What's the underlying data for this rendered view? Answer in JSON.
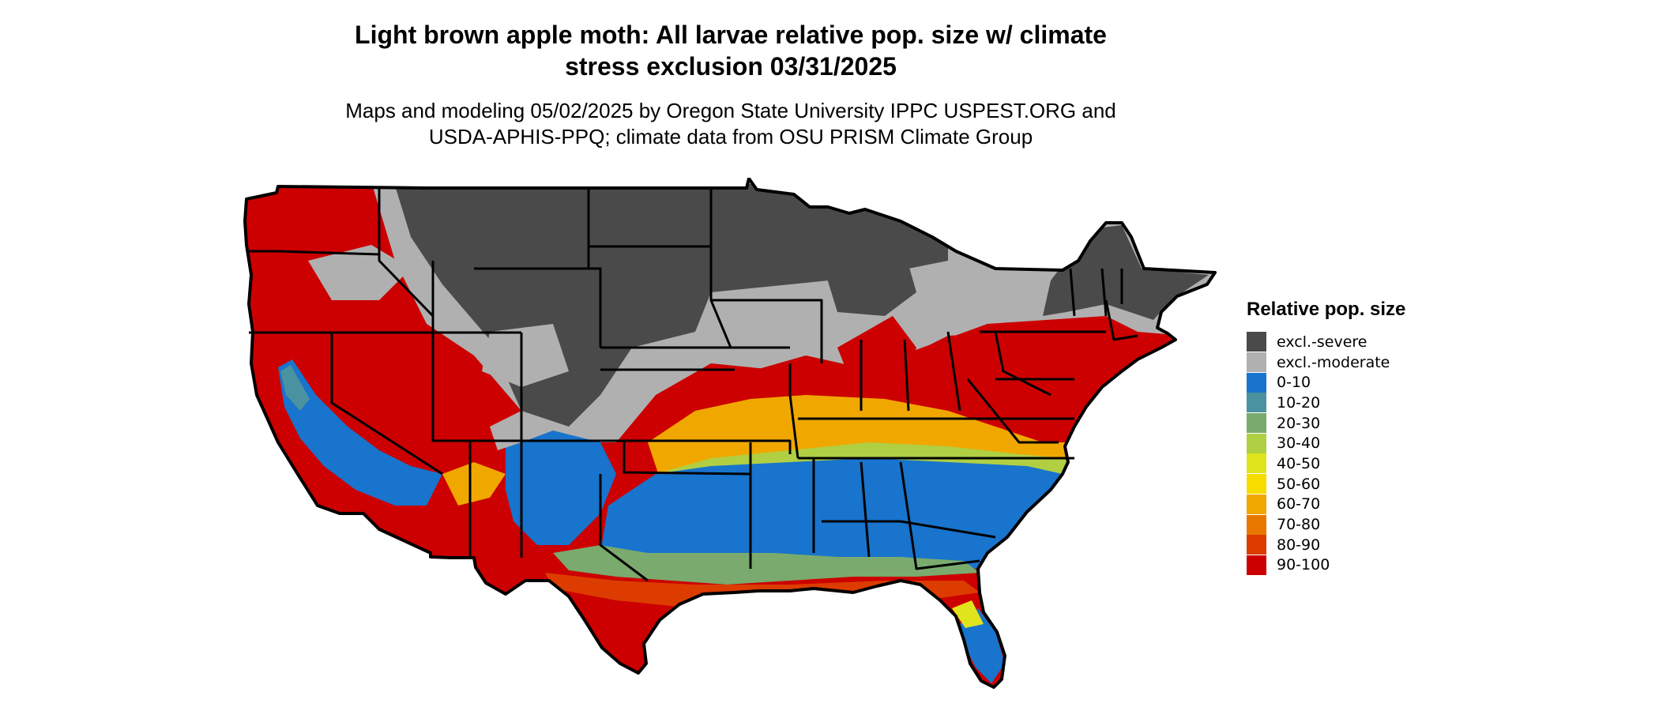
{
  "title_line1": "Light brown apple moth: All larvae relative pop. size w/ climate",
  "title_line2": "stress exclusion 03/31/2025",
  "subtitle_line1": "Maps and modeling 05/02/2025 by Oregon State University IPPC USPEST.ORG and",
  "subtitle_line2": "USDA-APHIS-PPQ; climate data from OSU PRISM Climate Group",
  "legend": {
    "title": "Relative pop. size",
    "items": [
      {
        "label": "excl.-severe",
        "color": "#4a4a4a"
      },
      {
        "label": "excl.-moderate",
        "color": "#b0b0b0"
      },
      {
        "label": "0-10",
        "color": "#1874cd"
      },
      {
        "label": "10-20",
        "color": "#4a92a0"
      },
      {
        "label": "20-30",
        "color": "#7aaa6e"
      },
      {
        "label": "30-40",
        "color": "#b0cf43"
      },
      {
        "label": "40-50",
        "color": "#e0e41c"
      },
      {
        "label": "50-60",
        "color": "#f7dc00"
      },
      {
        "label": "60-70",
        "color": "#f0a800"
      },
      {
        "label": "70-80",
        "color": "#e87800"
      },
      {
        "label": "80-90",
        "color": "#dc3c00"
      },
      {
        "label": "90-100",
        "color": "#cc0000"
      }
    ]
  },
  "map_colors": {
    "severe": "#4a4a4a",
    "moderate": "#b0b0b0",
    "c0_10": "#1874cd",
    "c10_20": "#4a92a0",
    "c20_30": "#7aaa6e",
    "c30_40": "#b0cf43",
    "c40_50": "#e0e41c",
    "c60_70": "#f0a800",
    "c80_90": "#dc3c00",
    "c90_100": "#cc0000",
    "border": "#000000"
  }
}
